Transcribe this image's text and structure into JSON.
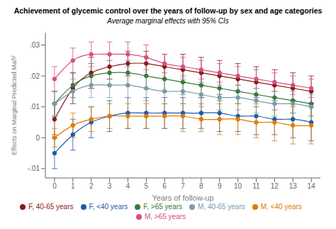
{
  "chart_data": {
    "type": "line",
    "title": "Achievement of glycemic control over the years of follow-up by sex and age categories",
    "subtitle": "Average marginal effects with 95% CIs",
    "xlabel": "Years of follow-up",
    "ylabel": "Effects on Marginal Predicted Mañ²",
    "xlim": [
      -0.5,
      14.5
    ],
    "ylim": [
      -0.013,
      0.034
    ],
    "xticks": [
      0,
      1,
      2,
      3,
      4,
      5,
      6,
      7,
      8,
      9,
      10,
      11,
      12,
      13,
      14
    ],
    "yticks": [
      {
        "value": -0.01,
        "label": "-.01"
      },
      0,
      {
        "value": 0.01,
        "label": ".01"
      },
      {
        "value": 0.02,
        "label": ".02"
      },
      {
        "value": 0.03,
        "label": ".03"
      }
    ],
    "grid": false,
    "legend": "bottom",
    "x": [
      0,
      1,
      2,
      3,
      4,
      5,
      6,
      7,
      8,
      9,
      10,
      11,
      12,
      13,
      14
    ],
    "series": [
      {
        "name": "F, <40 years",
        "color": "#1f5aab",
        "marker": "circle",
        "values": [
          -0.005,
          0.001,
          0.005,
          0.007,
          0.008,
          0.008,
          0.008,
          0.008,
          0.008,
          0.008,
          0.007,
          0.007,
          0.006,
          0.006,
          0.005
        ],
        "ci_lower": [
          -0.01,
          -0.004,
          0.0,
          0.002,
          0.003,
          0.003,
          0.003,
          0.003,
          0.003,
          0.002,
          0.002,
          0.001,
          0.001,
          0.0,
          -0.001
        ],
        "ci_upper": [
          0.0,
          0.006,
          0.01,
          0.012,
          0.013,
          0.013,
          0.013,
          0.013,
          0.013,
          0.014,
          0.013,
          0.013,
          0.012,
          0.012,
          0.011
        ]
      },
      {
        "name": "F, 40-65 years",
        "color": "#8b1a1a",
        "marker": "circle",
        "values": [
          0.006,
          0.016,
          0.021,
          0.023,
          0.024,
          0.024,
          0.023,
          0.022,
          0.021,
          0.02,
          0.019,
          0.018,
          0.017,
          0.016,
          0.015
        ],
        "ci_lower": [
          0.001,
          0.011,
          0.016,
          0.019,
          0.02,
          0.02,
          0.019,
          0.018,
          0.017,
          0.016,
          0.015,
          0.014,
          0.013,
          0.012,
          0.011
        ],
        "ci_upper": [
          0.011,
          0.021,
          0.026,
          0.027,
          0.028,
          0.028,
          0.027,
          0.027,
          0.026,
          0.025,
          0.024,
          0.023,
          0.022,
          0.021,
          0.02
        ]
      },
      {
        "name": "F, >65 years",
        "color": "#3a7a3a",
        "marker": "circle",
        "values": [
          0.011,
          0.017,
          0.02,
          0.021,
          0.021,
          0.02,
          0.019,
          0.018,
          0.017,
          0.016,
          0.015,
          0.014,
          0.013,
          0.012,
          0.011
        ],
        "ci_lower": [
          0.007,
          0.013,
          0.016,
          0.017,
          0.017,
          0.016,
          0.015,
          0.014,
          0.013,
          0.012,
          0.011,
          0.01,
          0.009,
          0.008,
          0.007
        ],
        "ci_upper": [
          0.015,
          0.021,
          0.024,
          0.025,
          0.025,
          0.024,
          0.023,
          0.022,
          0.021,
          0.02,
          0.019,
          0.018,
          0.017,
          0.016,
          0.015
        ]
      },
      {
        "name": "M, <40 years",
        "color": "#e07b00",
        "marker": "circle",
        "values": [
          0.0,
          0.004,
          0.006,
          0.007,
          0.007,
          0.007,
          0.007,
          0.007,
          0.006,
          0.006,
          0.006,
          0.005,
          0.005,
          0.004,
          0.004
        ],
        "ci_lower": [
          -0.003,
          0.0,
          0.002,
          0.003,
          0.003,
          0.003,
          0.003,
          0.002,
          0.002,
          0.001,
          0.001,
          0.0,
          -0.001,
          -0.002,
          -0.002
        ],
        "ci_upper": [
          0.003,
          0.008,
          0.01,
          0.011,
          0.011,
          0.011,
          0.011,
          0.011,
          0.011,
          0.011,
          0.011,
          0.011,
          0.011,
          0.01,
          0.01
        ]
      },
      {
        "name": "M, 40-65 years",
        "color": "#7a9aaa",
        "marker": "circle",
        "values": [
          0.011,
          0.015,
          0.017,
          0.017,
          0.017,
          0.016,
          0.015,
          0.015,
          0.014,
          0.013,
          0.013,
          0.012,
          0.011,
          0.011,
          0.01
        ],
        "ci_lower": [
          0.007,
          0.011,
          0.013,
          0.013,
          0.013,
          0.012,
          0.011,
          0.011,
          0.01,
          0.009,
          0.009,
          0.008,
          0.007,
          0.006,
          0.005
        ],
        "ci_upper": [
          0.015,
          0.019,
          0.021,
          0.021,
          0.021,
          0.02,
          0.019,
          0.019,
          0.018,
          0.017,
          0.017,
          0.016,
          0.015,
          0.015,
          0.014
        ]
      },
      {
        "name": "M, >65 years",
        "color": "#d45080",
        "marker": "circle",
        "values": [
          0.019,
          0.025,
          0.027,
          0.027,
          0.027,
          0.026,
          0.024,
          0.023,
          0.022,
          0.021,
          0.02,
          0.019,
          0.018,
          0.017,
          0.016
        ],
        "ci_lower": [
          0.015,
          0.021,
          0.023,
          0.023,
          0.023,
          0.022,
          0.021,
          0.02,
          0.019,
          0.018,
          0.017,
          0.016,
          0.015,
          0.014,
          0.013
        ],
        "ci_upper": [
          0.023,
          0.029,
          0.031,
          0.031,
          0.031,
          0.03,
          0.027,
          0.026,
          0.025,
          0.024,
          0.023,
          0.022,
          0.021,
          0.02,
          0.019
        ]
      }
    ]
  }
}
